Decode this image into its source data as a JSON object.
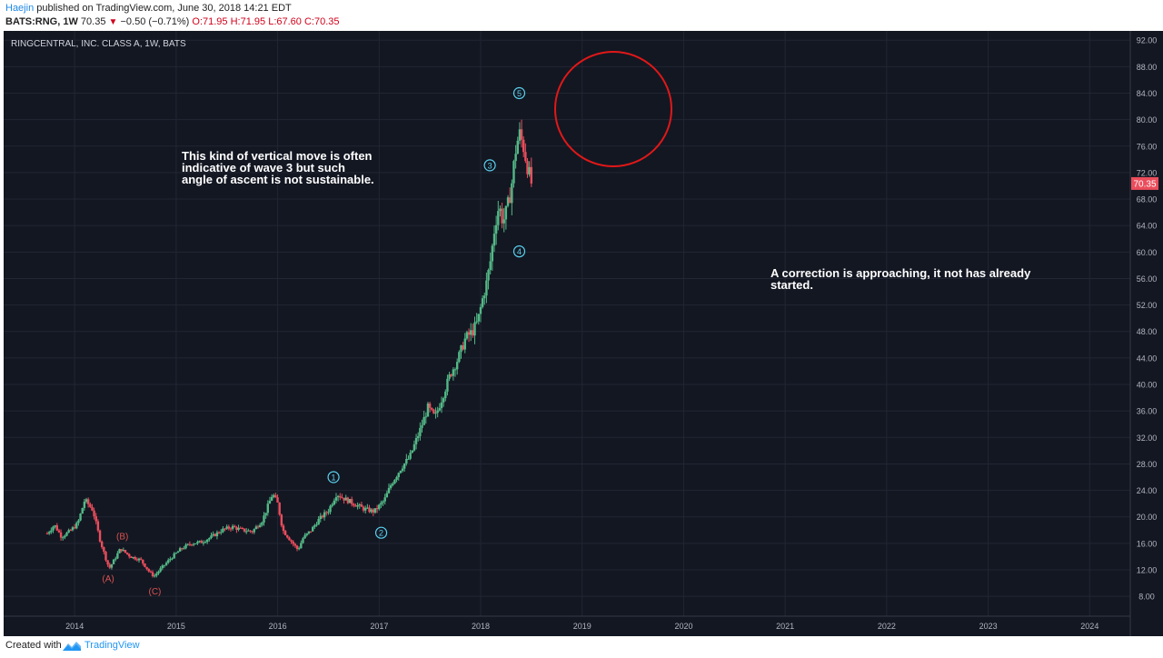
{
  "header": {
    "author": "Haejin",
    "published_text": "published on TradingView.com, June 30, 2018 14:21 EDT",
    "symbol_line": "BATS:RNG, 1W",
    "last": "70.35",
    "change": "−0.50 (−0.71%)",
    "open_label": "O:",
    "open": "71.95",
    "high_label": "H:",
    "high": "71.95",
    "low_label": "L:",
    "low": "67.60",
    "close_label": "C:",
    "close": "70.35"
  },
  "footer": {
    "created_with": "Created with",
    "brand": "TradingView"
  },
  "colors": {
    "background": "#131722",
    "grid": "#222633",
    "up": "#53b987",
    "down": "#eb4d5c",
    "text": "#b2b5be",
    "wave": "#5ad2ef",
    "abc": "#d9534f",
    "circle": "#e01818"
  },
  "chart_data": {
    "type": "candlestick",
    "title": "RINGCENTRAL, INC. CLASS A, 1W, BATS",
    "x_ticks": [
      "2014",
      "2015",
      "2016",
      "2017",
      "2018",
      "2019",
      "2020",
      "2021",
      "2022",
      "2023",
      "2024"
    ],
    "x_range": [
      2013.3,
      2024.4
    ],
    "y_ticks": [
      "8.00",
      "12.00",
      "16.00",
      "20.00",
      "24.00",
      "28.00",
      "32.00",
      "36.00",
      "40.00",
      "44.00",
      "48.00",
      "52.00",
      "56.00",
      "60.00",
      "64.00",
      "68.00",
      "72.00",
      "76.00",
      "80.00",
      "84.00",
      "88.00",
      "92.00"
    ],
    "y_range": [
      5.0,
      93.4
    ],
    "last_price_label": "70.35",
    "last_price": 70.35,
    "price_path": [
      [
        2013.73,
        17.5
      ],
      [
        2013.8,
        18.8
      ],
      [
        2013.87,
        17.0
      ],
      [
        2013.95,
        17.8
      ],
      [
        2014.03,
        19.0
      ],
      [
        2014.1,
        22.6
      ],
      [
        2014.18,
        21.0
      ],
      [
        2014.25,
        16.5
      ],
      [
        2014.3,
        14.0
      ],
      [
        2014.34,
        12.2
      ],
      [
        2014.4,
        13.8
      ],
      [
        2014.45,
        15.2
      ],
      [
        2014.55,
        14.0
      ],
      [
        2014.65,
        13.5
      ],
      [
        2014.73,
        11.8
      ],
      [
        2014.78,
        11.0
      ],
      [
        2014.85,
        12.2
      ],
      [
        2014.95,
        13.8
      ],
      [
        2015.05,
        15.2
      ],
      [
        2015.15,
        16.0
      ],
      [
        2015.25,
        16.2
      ],
      [
        2015.35,
        17.0
      ],
      [
        2015.45,
        18.0
      ],
      [
        2015.55,
        18.5
      ],
      [
        2015.65,
        18.0
      ],
      [
        2015.75,
        17.8
      ],
      [
        2015.85,
        19.5
      ],
      [
        2015.95,
        23.5
      ],
      [
        2016.0,
        22.0
      ],
      [
        2016.05,
        18.0
      ],
      [
        2016.1,
        17.0
      ],
      [
        2016.2,
        15.0
      ],
      [
        2016.25,
        16.8
      ],
      [
        2016.33,
        18.0
      ],
      [
        2016.4,
        19.5
      ],
      [
        2016.5,
        21.0
      ],
      [
        2016.58,
        23.5
      ],
      [
        2016.65,
        22.8
      ],
      [
        2016.75,
        22.0
      ],
      [
        2016.85,
        21.2
      ],
      [
        2016.95,
        20.8
      ],
      [
        2017.05,
        22.5
      ],
      [
        2017.12,
        25.0
      ],
      [
        2017.22,
        27.5
      ],
      [
        2017.3,
        29.0
      ],
      [
        2017.4,
        33.0
      ],
      [
        2017.48,
        36.5
      ],
      [
        2017.55,
        35.0
      ],
      [
        2017.62,
        38.0
      ],
      [
        2017.7,
        41.5
      ],
      [
        2017.78,
        44.0
      ],
      [
        2017.85,
        47.0
      ],
      [
        2017.92,
        48.0
      ],
      [
        2017.97,
        49.5
      ],
      [
        2018.02,
        53.0
      ],
      [
        2018.06,
        55.5
      ],
      [
        2018.1,
        59.0
      ],
      [
        2018.14,
        64.0
      ],
      [
        2018.18,
        67.0
      ],
      [
        2018.22,
        64.5
      ],
      [
        2018.26,
        66.5
      ],
      [
        2018.3,
        69.5
      ],
      [
        2018.34,
        75.0
      ],
      [
        2018.38,
        78.0
      ],
      [
        2018.42,
        76.0
      ],
      [
        2018.46,
        73.0
      ],
      [
        2018.5,
        70.35
      ]
    ],
    "abc_labels": [
      {
        "label": "(B)",
        "x": 2014.47,
        "y": 17.0
      },
      {
        "label": "(A)",
        "x": 2014.33,
        "y": 10.6
      },
      {
        "label": "(C)",
        "x": 2014.79,
        "y": 8.7
      }
    ],
    "wave_labels": [
      {
        "label": "1",
        "x": 2016.55,
        "y": 26.0
      },
      {
        "label": "2",
        "x": 2017.02,
        "y": 17.6
      },
      {
        "label": "3",
        "x": 2018.09,
        "y": 73.1
      },
      {
        "label": "4",
        "x": 2018.38,
        "y": 60.1
      },
      {
        "label": "5",
        "x": 2018.38,
        "y": 84.0
      }
    ],
    "annotations": [
      {
        "text": "This kind of vertical move is often indicative of wave 3 but such angle of ascent is not sustainable."
      },
      {
        "text": "A correction is approaching, it not has already started."
      }
    ]
  }
}
